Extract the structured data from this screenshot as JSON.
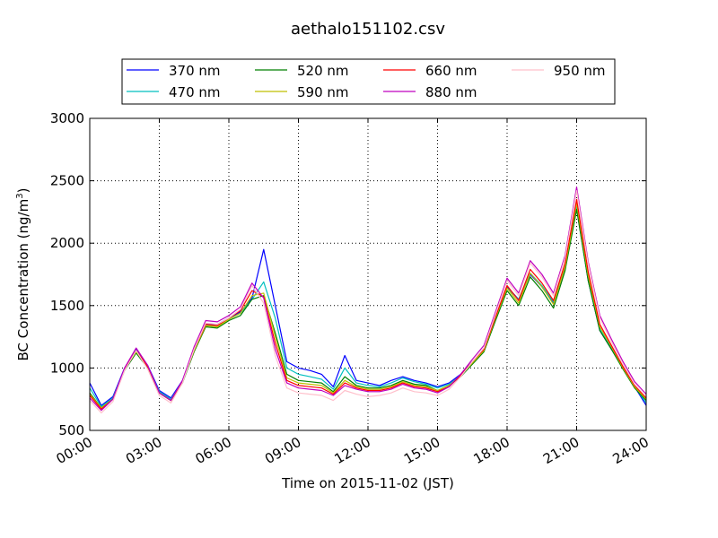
{
  "chart_data": {
    "type": "line",
    "title": "aethalo151102.csv",
    "xlabel": "Time on 2015-11-02 (JST)",
    "ylabel": "BC Concentration (ng/m",
    "ylabel_sup": "3",
    "ylabel_close": ")",
    "xlim": [
      0,
      24
    ],
    "ylim": [
      500,
      3000
    ],
    "grid": true,
    "legend_position": "top-center",
    "x_ticks": [
      0,
      3,
      6,
      9,
      12,
      15,
      18,
      21,
      24
    ],
    "x_tick_labels": [
      "00:00",
      "03:00",
      "06:00",
      "09:00",
      "12:00",
      "15:00",
      "18:00",
      "21:00",
      "24:00"
    ],
    "y_ticks": [
      500,
      1000,
      1500,
      2000,
      2500,
      3000
    ],
    "y_tick_labels": [
      "500",
      "1000",
      "1500",
      "2000",
      "2500",
      "3000"
    ],
    "x": [
      0.0,
      0.5,
      1.0,
      1.5,
      2.0,
      2.5,
      3.0,
      3.5,
      4.0,
      4.5,
      5.0,
      5.5,
      6.0,
      6.5,
      7.0,
      7.5,
      8.0,
      8.5,
      9.0,
      9.5,
      10.0,
      10.5,
      11.0,
      11.5,
      12.0,
      12.5,
      13.0,
      13.5,
      14.0,
      14.5,
      15.0,
      15.5,
      16.0,
      16.5,
      17.0,
      17.5,
      18.0,
      18.5,
      19.0,
      19.5,
      20.0,
      20.5,
      21.0,
      21.5,
      22.0,
      22.5,
      23.0,
      23.5,
      24.0
    ],
    "series": [
      {
        "name": "370 nm",
        "color": "#0000ff",
        "values": [
          880,
          700,
          770,
          1000,
          1150,
          1020,
          820,
          760,
          900,
          1150,
          1350,
          1350,
          1400,
          1450,
          1560,
          1950,
          1500,
          1050,
          1000,
          980,
          950,
          850,
          1100,
          900,
          880,
          860,
          900,
          930,
          900,
          880,
          850,
          880,
          950,
          1050,
          1150,
          1400,
          1650,
          1550,
          1750,
          1650,
          1520,
          1800,
          2280,
          1700,
          1300,
          1150,
          1000,
          850,
          700
        ]
      },
      {
        "name": "470 nm",
        "color": "#00bfbf",
        "values": [
          840,
          690,
          760,
          990,
          1140,
          1010,
          810,
          750,
          890,
          1140,
          1340,
          1340,
          1390,
          1440,
          1550,
          1690,
          1400,
          1000,
          950,
          930,
          910,
          830,
          1000,
          880,
          860,
          850,
          880,
          920,
          890,
          870,
          840,
          870,
          940,
          1040,
          1140,
          1390,
          1640,
          1550,
          1760,
          1660,
          1530,
          1810,
          2300,
          1720,
          1310,
          1160,
          1000,
          850,
          720
        ]
      },
      {
        "name": "520 nm",
        "color": "#007f00",
        "values": [
          800,
          680,
          750,
          980,
          1120,
          1000,
          800,
          740,
          880,
          1130,
          1330,
          1320,
          1380,
          1420,
          1550,
          1580,
          1280,
          950,
          900,
          890,
          880,
          810,
          930,
          860,
          840,
          840,
          860,
          900,
          870,
          860,
          820,
          860,
          930,
          1030,
          1130,
          1380,
          1620,
          1500,
          1730,
          1620,
          1480,
          1780,
          2270,
          1700,
          1300,
          1150,
          990,
          840,
          740
        ]
      },
      {
        "name": "590 nm",
        "color": "#bfbf00",
        "values": [
          790,
          680,
          750,
          990,
          1130,
          1010,
          800,
          740,
          890,
          1140,
          1340,
          1330,
          1390,
          1440,
          1580,
          1600,
          1250,
          920,
          880,
          870,
          860,
          800,
          900,
          850,
          830,
          830,
          850,
          890,
          860,
          850,
          820,
          860,
          940,
          1040,
          1140,
          1400,
          1640,
          1520,
          1760,
          1650,
          1510,
          1810,
          2320,
          1740,
          1330,
          1170,
          1000,
          850,
          750
        ]
      },
      {
        "name": "660 nm",
        "color": "#ff0000",
        "values": [
          780,
          670,
          750,
          990,
          1140,
          1010,
          800,
          740,
          890,
          1150,
          1350,
          1340,
          1400,
          1460,
          1620,
          1570,
          1200,
          900,
          860,
          850,
          840,
          790,
          880,
          840,
          820,
          820,
          840,
          880,
          850,
          840,
          810,
          850,
          940,
          1050,
          1150,
          1410,
          1660,
          1540,
          1790,
          1680,
          1540,
          1840,
          2350,
          1770,
          1350,
          1180,
          1010,
          860,
          760
        ]
      },
      {
        "name": "880 nm",
        "color": "#bf00bf",
        "values": [
          760,
          660,
          750,
          1000,
          1160,
          1020,
          800,
          740,
          900,
          1170,
          1380,
          1370,
          1420,
          1490,
          1680,
          1560,
          1150,
          880,
          840,
          830,
          820,
          780,
          860,
          830,
          810,
          810,
          830,
          870,
          840,
          830,
          800,
          850,
          950,
          1070,
          1180,
          1450,
          1720,
          1600,
          1860,
          1750,
          1600,
          1900,
          2450,
          1850,
          1420,
          1230,
          1050,
          890,
          790
        ]
      },
      {
        "name": "950 nm",
        "color": "#ffc0cb",
        "values": [
          740,
          640,
          730,
          980,
          1140,
          990,
          780,
          720,
          880,
          1150,
          1360,
          1350,
          1400,
          1470,
          1660,
          1520,
          1100,
          840,
          800,
          790,
          780,
          740,
          820,
          790,
          770,
          780,
          800,
          840,
          810,
          800,
          780,
          830,
          930,
          1050,
          1160,
          1430,
          1700,
          1580,
          1840,
          1730,
          1580,
          1880,
          2420,
          1830,
          1400,
          1210,
          1030,
          870,
          770
        ]
      }
    ]
  }
}
